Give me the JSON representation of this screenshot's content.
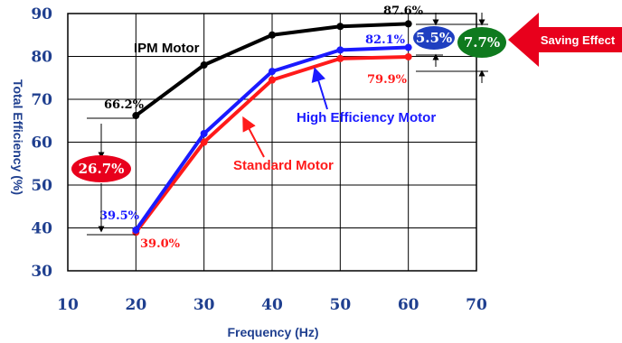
{
  "chart_data": {
    "type": "line",
    "xlabel": "Frequency (Hz)",
    "ylabel": "Total Efficiency  (%)",
    "xlim": [
      10,
      70
    ],
    "ylim": [
      30,
      90
    ],
    "x_ticks": [
      "10",
      "20",
      "30",
      "40",
      "50",
      "60",
      "70"
    ],
    "y_ticks": [
      "90",
      "80",
      "70",
      "60",
      "50",
      "40",
      "30"
    ],
    "grid": true,
    "x": [
      20,
      30,
      40,
      50,
      60
    ],
    "series": [
      {
        "name": "IPM Motor",
        "color": "#000000",
        "values": [
          66.2,
          78,
          85,
          87,
          87.6
        ]
      },
      {
        "name": "High Efficiency Motor",
        "color": "#1a1aff",
        "values": [
          39.5,
          62,
          76.5,
          81.5,
          82.1
        ]
      },
      {
        "name": "Standard Motor",
        "color": "#ff1a1a",
        "values": [
          39.0,
          60,
          74.5,
          79.5,
          79.9
        ]
      }
    ],
    "data_labels": {
      "ipm_20": "66.2%",
      "ipm_60": "87.6%",
      "high_20": "39.5%",
      "high_60": "82.1%",
      "std_20": "39.0%",
      "std_60": "79.9%"
    },
    "annotations": {
      "gap_ipm_std_20": "26.7%",
      "gap_ipm_high_60": "5.5%",
      "gap_ipm_std_60": "7.7%",
      "saving": "Saving Effect"
    },
    "colors": {
      "ipm": "#000000",
      "high": "#1a1aff",
      "std": "#ff1a1a",
      "callout_red": "#e8001c",
      "callout_blue": "#1f3fc0",
      "callout_green": "#0f7a1e",
      "axis_text": "#1f3f8f"
    }
  }
}
